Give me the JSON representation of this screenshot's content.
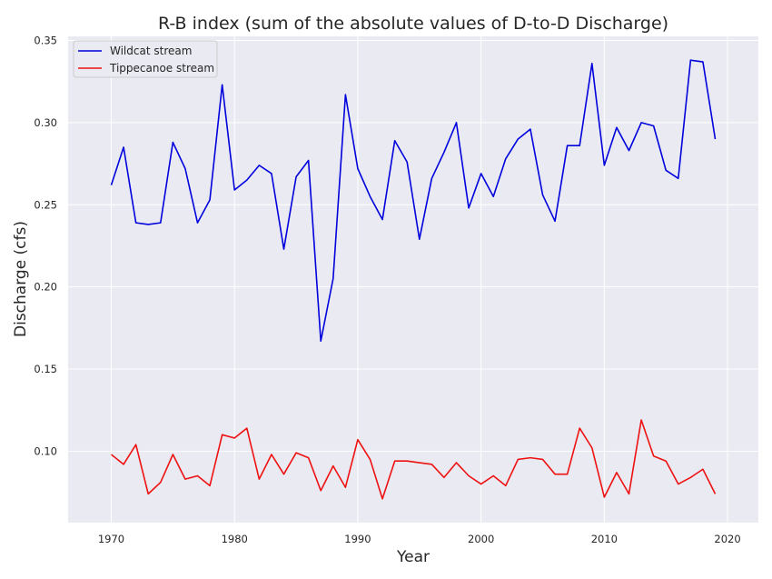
{
  "chart_data": {
    "type": "line",
    "title": "R-B index (sum of the absolute values of D-to-D Discharge)",
    "xlabel": "Year",
    "ylabel": "Discharge (cfs)",
    "xlim": [
      1966.5,
      2022.5
    ],
    "ylim": [
      0.0565,
      0.3525
    ],
    "xticks": [
      1970,
      1980,
      1990,
      2000,
      2010,
      2020
    ],
    "yticks": [
      0.1,
      0.15,
      0.2,
      0.25,
      0.3,
      0.35
    ],
    "ytick_labels": [
      "0.10",
      "0.15",
      "0.20",
      "0.25",
      "0.30",
      "0.35"
    ],
    "grid": true,
    "legend_position": "top-left",
    "background": "#eaeaf2",
    "x": [
      1970,
      1971,
      1972,
      1973,
      1974,
      1975,
      1976,
      1977,
      1978,
      1979,
      1980,
      1981,
      1982,
      1983,
      1984,
      1985,
      1986,
      1987,
      1988,
      1989,
      1990,
      1991,
      1992,
      1993,
      1994,
      1995,
      1996,
      1997,
      1998,
      1999,
      2000,
      2001,
      2002,
      2003,
      2004,
      2005,
      2006,
      2007,
      2008,
      2009,
      2010,
      2011,
      2012,
      2013,
      2014,
      2015,
      2016,
      2017,
      2018,
      2019
    ],
    "series": [
      {
        "name": "Wildcat stream",
        "color": "#0000dd",
        "values": [
          0.262,
          0.285,
          0.239,
          0.238,
          0.239,
          0.288,
          0.272,
          0.239,
          0.253,
          0.323,
          0.259,
          0.265,
          0.274,
          0.269,
          0.223,
          0.267,
          0.277,
          0.167,
          0.205,
          0.317,
          0.272,
          0.255,
          0.241,
          0.289,
          0.276,
          0.229,
          0.266,
          0.282,
          0.3,
          0.248,
          0.269,
          0.255,
          0.278,
          0.29,
          0.296,
          0.256,
          0.24,
          0.286,
          0.286,
          0.336,
          0.274,
          0.297,
          0.283,
          0.3,
          0.298,
          0.271,
          0.266,
          0.338,
          0.337,
          0.29
        ]
      },
      {
        "name": "Tippecanoe stream",
        "color": "#ee1111",
        "values": [
          0.098,
          0.092,
          0.104,
          0.074,
          0.081,
          0.098,
          0.083,
          0.085,
          0.079,
          0.11,
          0.108,
          0.114,
          0.083,
          0.098,
          0.086,
          0.099,
          0.096,
          0.076,
          0.091,
          0.078,
          0.107,
          0.095,
          0.071,
          0.094,
          0.094,
          0.093,
          0.092,
          0.084,
          0.093,
          0.085,
          0.08,
          0.085,
          0.079,
          0.095,
          0.096,
          0.095,
          0.086,
          0.086,
          0.114,
          0.102,
          0.072,
          0.087,
          0.074,
          0.119,
          0.097,
          0.094,
          0.08,
          0.084,
          0.089,
          0.074
        ]
      }
    ]
  }
}
